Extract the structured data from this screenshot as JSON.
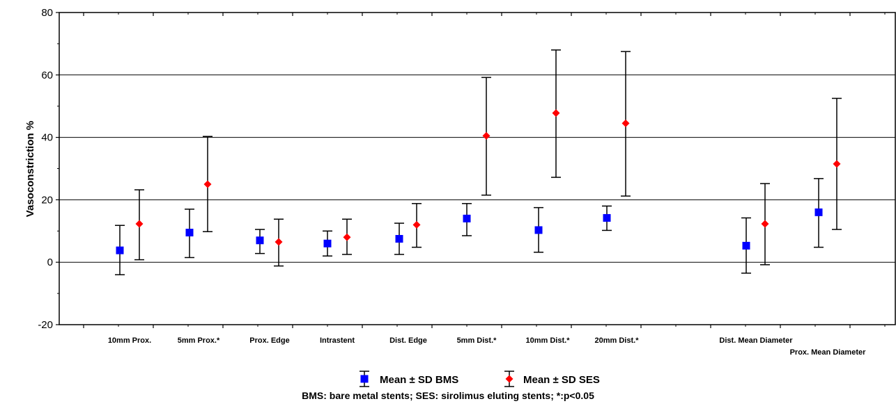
{
  "chart_data": {
    "type": "scatter",
    "ylabel": "Vasoconstriction %",
    "xlabel": "",
    "ylim": [
      -20,
      80
    ],
    "yticks": [
      -20,
      0,
      20,
      40,
      60,
      80
    ],
    "grid": "horizontal",
    "categories": [
      "10mm Prox.",
      "5mm Prox.*",
      "Prox. Edge",
      "Intrastent",
      "Dist. Edge",
      "5mm Dist.*",
      "10mm Dist.*",
      "20mm Dist.*",
      "Dist. Mean Diameter",
      "Prox. Mean Diameter"
    ],
    "series": [
      {
        "name": "Mean ± SD BMS",
        "color": "#0000ff",
        "marker": "square",
        "mean": [
          3.8,
          9.5,
          7.0,
          6.0,
          7.5,
          14.0,
          10.3,
          14.2,
          5.3,
          16.0
        ],
        "lower": [
          -4.0,
          1.5,
          2.8,
          2.0,
          2.5,
          8.5,
          3.2,
          10.2,
          -3.5,
          4.8
        ],
        "upper": [
          11.8,
          17.0,
          10.5,
          10.0,
          12.5,
          18.8,
          17.5,
          18.0,
          14.2,
          26.8
        ]
      },
      {
        "name": "Mean ± SD SES",
        "color": "#ff0000",
        "marker": "diamond",
        "mean": [
          12.3,
          25.0,
          6.5,
          8.0,
          12.0,
          40.5,
          47.8,
          44.5,
          12.3,
          31.5
        ],
        "lower": [
          0.8,
          9.8,
          -1.2,
          2.5,
          4.8,
          21.5,
          27.2,
          21.2,
          -0.8,
          10.5
        ],
        "upper": [
          23.2,
          40.3,
          13.8,
          13.8,
          18.8,
          59.2,
          68.0,
          67.5,
          25.2,
          52.5
        ]
      }
    ],
    "legend_position": "bottom-center",
    "note": "BMS: bare metal stents; SES: sirolimus eluting stents; *:p<0.05"
  }
}
